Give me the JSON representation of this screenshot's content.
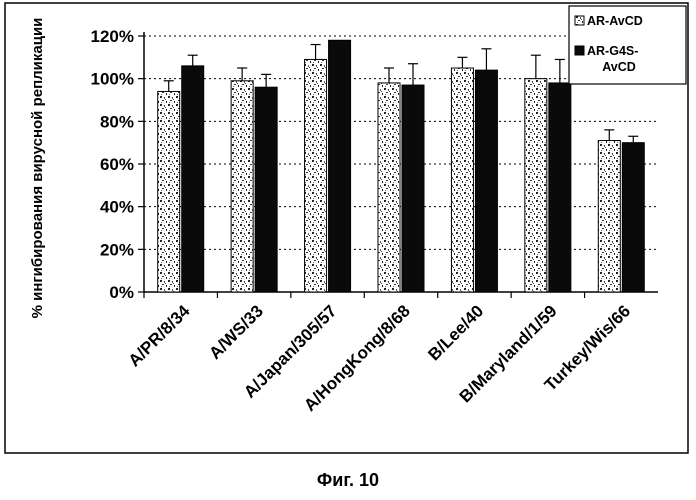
{
  "caption": "Фиг. 10",
  "colors": {
    "series1": "#cfcfcf",
    "series2": "#0a0a0a",
    "ink": "#000000"
  },
  "chart_data": {
    "type": "bar",
    "title": "",
    "xlabel": "",
    "ylabel": "% ингибирования вирусной репликации",
    "ylim": [
      0,
      120
    ],
    "yticks": [
      0,
      20,
      40,
      60,
      80,
      100,
      120
    ],
    "ytick_labels": [
      "0%",
      "20%",
      "40%",
      "60%",
      "80%",
      "100%",
      "120%"
    ],
    "grid": "horizontal dashed",
    "legend_position": "top-right",
    "categories": [
      "A/PR/8/34",
      "A/WS/33",
      "A/Japan/305/57",
      "A/HongKong/8/68",
      "B/Lee/40",
      "B/Maryland/1/59",
      "Turkey/Wis/66"
    ],
    "series": [
      {
        "name": "AR-AvCD",
        "legend_label": [
          "AR-AvCD"
        ],
        "pattern": "speckled",
        "values": [
          94,
          99,
          109,
          98,
          105,
          100,
          71
        ],
        "errors": [
          5,
          6,
          7,
          7,
          5,
          11,
          5
        ]
      },
      {
        "name": "AR-G4S-AvCD",
        "legend_label": [
          "AR-G4S-",
          "AvCD"
        ],
        "pattern": "solid",
        "values": [
          106,
          96,
          118,
          97,
          104,
          98,
          70
        ],
        "errors": [
          5,
          6,
          0,
          10,
          10,
          11,
          3
        ]
      }
    ]
  }
}
